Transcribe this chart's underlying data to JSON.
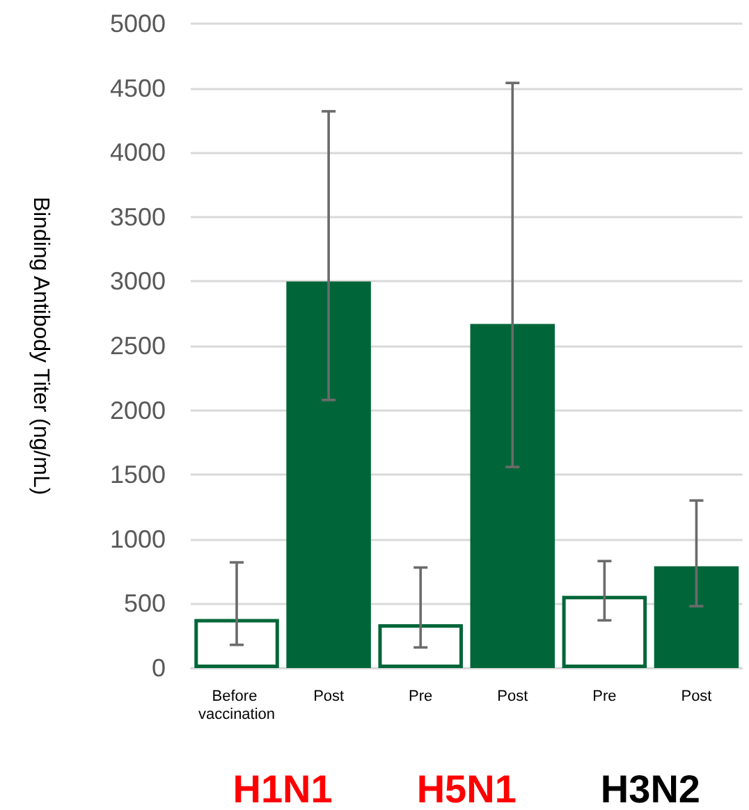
{
  "chart_data": {
    "type": "bar",
    "ylabel": "Binding Antibody Titer (ng/mL)",
    "categories": [
      "Before vaccination",
      "Post",
      "Pre",
      "Post",
      "Pre",
      "Post"
    ],
    "series": [
      {
        "color": "#006639",
        "values": [
          380,
          null,
          340,
          null,
          560,
          null
        ],
        "errors": [
          [
            180,
            820
          ],
          null,
          [
            160,
            780
          ],
          null,
          [
            370,
            830
          ],
          null
        ]
      },
      {
        "color": "#006639",
        "values": [
          null,
          3000,
          null,
          2670,
          null,
          790
        ],
        "errors": [
          null,
          [
            2080,
            4320
          ],
          null,
          [
            1560,
            4540
          ],
          null,
          [
            480,
            1300
          ]
        ]
      }
    ],
    "stacked": true,
    "ylim": [
      0,
      5000
    ],
    "yticks": [
      0,
      500,
      1000,
      1500,
      2000,
      2500,
      3000,
      3500,
      4000,
      4500,
      5000
    ],
    "grid": "y",
    "annotations": [
      "H1N1",
      "H5N1",
      "H3N2"
    ]
  }
}
